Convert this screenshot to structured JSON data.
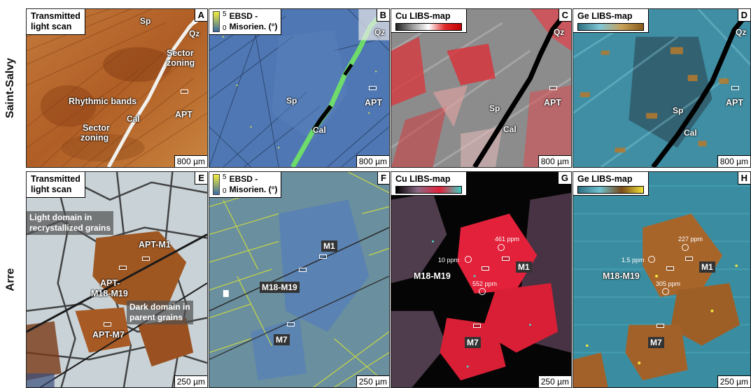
{
  "rows": [
    {
      "label": "Saint-Salvy"
    },
    {
      "label": "Arre"
    }
  ],
  "colors": {
    "transmitted": "#b5652a",
    "ebsd_blue": "#4f77b3",
    "cu_red": "#e0262e",
    "ge_teal": "#4fa8bd",
    "ge_brown": "#a8652a"
  },
  "panels": {
    "A": {
      "letter": "A",
      "title_line1": "Transmitted",
      "title_line2": "light scan",
      "scale": "800 µm",
      "labels": {
        "sp": "Sp",
        "qz": "Qz",
        "sector1": "Sector",
        "zoning1": "zoning",
        "rhythmic": "Rhythmic bands",
        "apt": "APT",
        "sector2": "Sector",
        "zoning2": "zoning",
        "cal": "Cal"
      }
    },
    "B": {
      "letter": "B",
      "title_line1": "EBSD -",
      "title_line2": "Misorien. (°)",
      "cmax": "5",
      "cmin": "0",
      "scale": "800 µm",
      "labels": {
        "qz": "Qz",
        "sp": "Sp",
        "cal": "Cal",
        "apt": "APT"
      }
    },
    "C": {
      "letter": "C",
      "title": "Cu LIBS-map",
      "scale": "800 µm",
      "labels": {
        "qz": "Qz",
        "sp": "Sp",
        "cal": "Cal",
        "apt": "APT"
      }
    },
    "D": {
      "letter": "D",
      "title": "Ge LIBS-map",
      "scale": "800 µm",
      "labels": {
        "qz": "Qz",
        "sp": "Sp",
        "cal": "Cal",
        "apt": "APT"
      }
    },
    "E": {
      "letter": "E",
      "title_line1": "Transmitted",
      "title_line2": "light scan",
      "scale": "250 µm",
      "labels": {
        "light1": "Light domain in",
        "light2": "recrystallized grains",
        "aptm1": "APT-M1",
        "aptm18a": "APT-",
        "aptm18b": "M18-M19",
        "dark1": "Dark domain in",
        "dark2": "parent grains",
        "aptm7": "APT-M7"
      }
    },
    "F": {
      "letter": "F",
      "title_line1": "EBSD -",
      "title_line2": "Misorien. (°)",
      "cmax": "5",
      "cmin": "0",
      "scale": "250 µm",
      "labels": {
        "m1": "M1",
        "m18": "M18-M19",
        "m7": "M7"
      }
    },
    "G": {
      "letter": "G",
      "title": "Cu LIBS-map",
      "scale": "250 µm",
      "labels": {
        "m1": "M1",
        "m18": "M18-M19",
        "m7": "M7",
        "p1": "10 ppm",
        "p2": "461 ppm",
        "p3": "552 ppm"
      }
    },
    "H": {
      "letter": "H",
      "title": "Ge LIBS-map",
      "scale": "250 µm",
      "labels": {
        "m1": "M1",
        "m18": "M18-M19",
        "m7": "M7",
        "p1": "1.5 ppm",
        "p2": "227 ppm",
        "p3": "305 ppm"
      }
    }
  }
}
